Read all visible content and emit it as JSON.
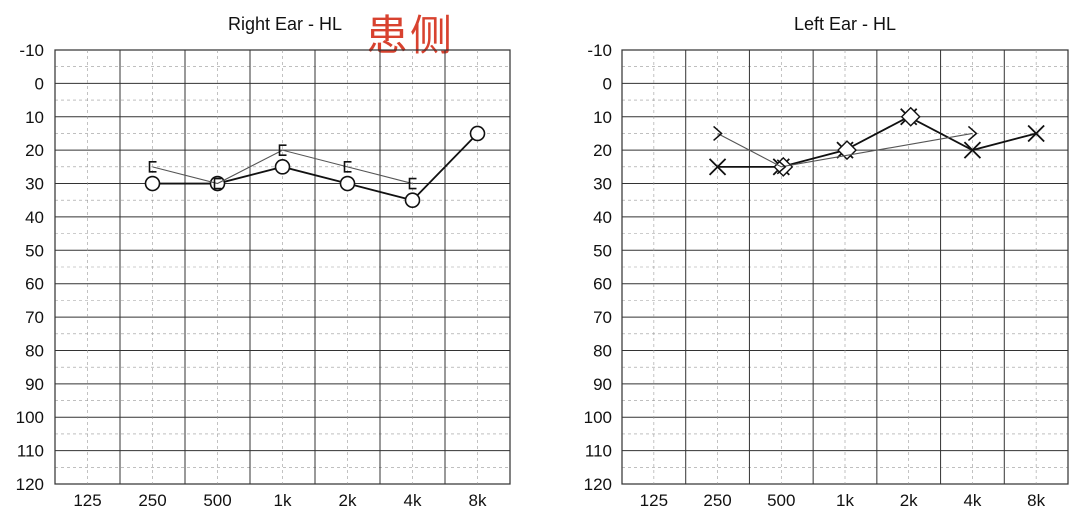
{
  "annotation": "患侧",
  "chart_data": [
    {
      "type": "line",
      "title": "Right Ear - HL",
      "categories": [
        "125",
        "250",
        "500",
        "1k",
        "2k",
        "4k",
        "8k"
      ],
      "y_ticks": [
        "-10",
        "0",
        "10",
        "20",
        "30",
        "40",
        "50",
        "60",
        "70",
        "80",
        "90",
        "100",
        "110",
        "120"
      ],
      "ylim": [
        -10,
        120
      ],
      "y_inverted": true,
      "grid": true,
      "series": [
        {
          "marker": "circle",
          "values": [
            null,
            30,
            30,
            25,
            30,
            35,
            15
          ],
          "line_color": "#111111"
        },
        {
          "marker": "bracket-left",
          "values": [
            null,
            25,
            30,
            20,
            25,
            30,
            null
          ],
          "line_color": "#555555"
        }
      ]
    },
    {
      "type": "line",
      "title": "Left Ear - HL",
      "categories": [
        "125",
        "250",
        "500",
        "1k",
        "2k",
        "4k",
        "8k"
      ],
      "y_ticks": [
        "-10",
        "0",
        "10",
        "20",
        "30",
        "40",
        "50",
        "60",
        "70",
        "80",
        "90",
        "100",
        "110",
        "120"
      ],
      "ylim": [
        -10,
        120
      ],
      "y_inverted": true,
      "grid": true,
      "series": [
        {
          "marker": "cross",
          "values": [
            null,
            25,
            25,
            20,
            10,
            20,
            15
          ],
          "line_color": "#111111"
        },
        {
          "marker": "diamond",
          "values": [
            null,
            null,
            25,
            20,
            10,
            null,
            null
          ],
          "line_color": "#111111"
        },
        {
          "marker": "chevron-right",
          "values": [
            null,
            15,
            25,
            null,
            null,
            15,
            null
          ],
          "line_color": "#555555"
        }
      ]
    }
  ]
}
